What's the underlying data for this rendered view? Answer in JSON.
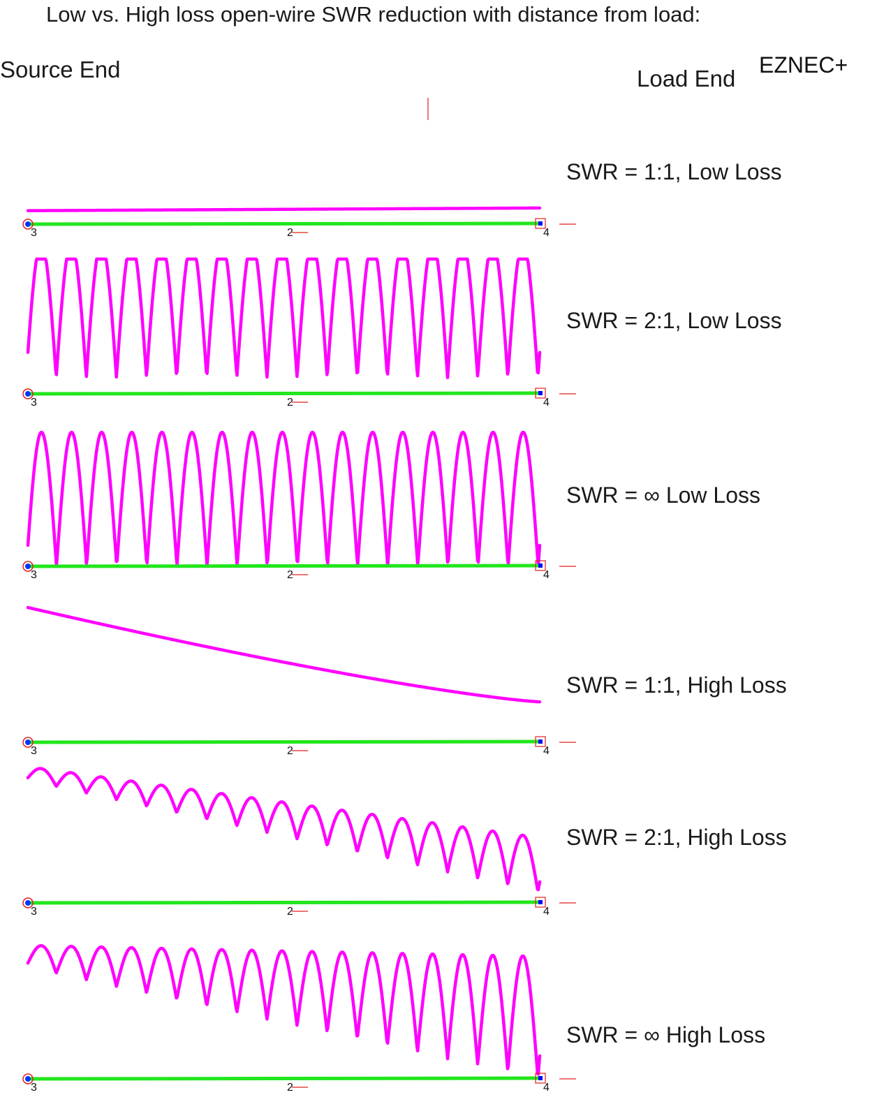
{
  "title": "Low vs. High loss open-wire SWR reduction with distance from load:",
  "labels": {
    "source_end": "Source End",
    "load_end": "Load End",
    "software": "EZNEC+"
  },
  "colors": {
    "curve": "#ff00ff",
    "wire": "#22e61e",
    "source_marker": "#0033ff",
    "source_ring": "#e02020",
    "load_marker": "#0000ff",
    "load_box": "#e02020",
    "current_tick": "#e02020"
  },
  "node_labels": {
    "source": "3",
    "middle": "2",
    "load": "4"
  },
  "cases": [
    {
      "label": "SWR = 1:1, Low Loss",
      "swr": "1:1",
      "loss": "low",
      "cycles": 0,
      "start_level": 0.1,
      "end_level": 0.12,
      "start_amp": 0.0,
      "end_amp": 0.0
    },
    {
      "label": "SWR = 2:1, Low Loss",
      "swr": "2:1",
      "loss": "low",
      "cycles": 17,
      "start_level": 0.62,
      "end_level": 0.62,
      "start_amp": 0.5,
      "end_amp": 0.5
    },
    {
      "label": "SWR = ∞  Low Loss",
      "swr": "infinite",
      "loss": "low",
      "cycles": 17,
      "start_level": 1.0,
      "end_level": 1.0,
      "start_amp": 1.0,
      "end_amp": 1.0
    },
    {
      "label": "SWR = 1:1, High Loss",
      "swr": "1:1",
      "loss": "high",
      "cycles": 0,
      "start_level": 1.0,
      "end_level": 0.3,
      "start_amp": 0.0,
      "end_amp": 0.0
    },
    {
      "label": "SWR = 2:1, High Loss",
      "swr": "2:1",
      "loss": "high",
      "cycles": 17,
      "start_level": 0.95,
      "end_level": 0.28,
      "start_amp": 0.05,
      "end_amp": 0.2
    },
    {
      "label": "SWR = ∞  High Loss",
      "swr": "infinite",
      "loss": "high",
      "cycles": 17,
      "start_level": 0.9,
      "end_level": 0.45,
      "start_amp": 0.08,
      "end_amp": 0.45
    }
  ]
}
